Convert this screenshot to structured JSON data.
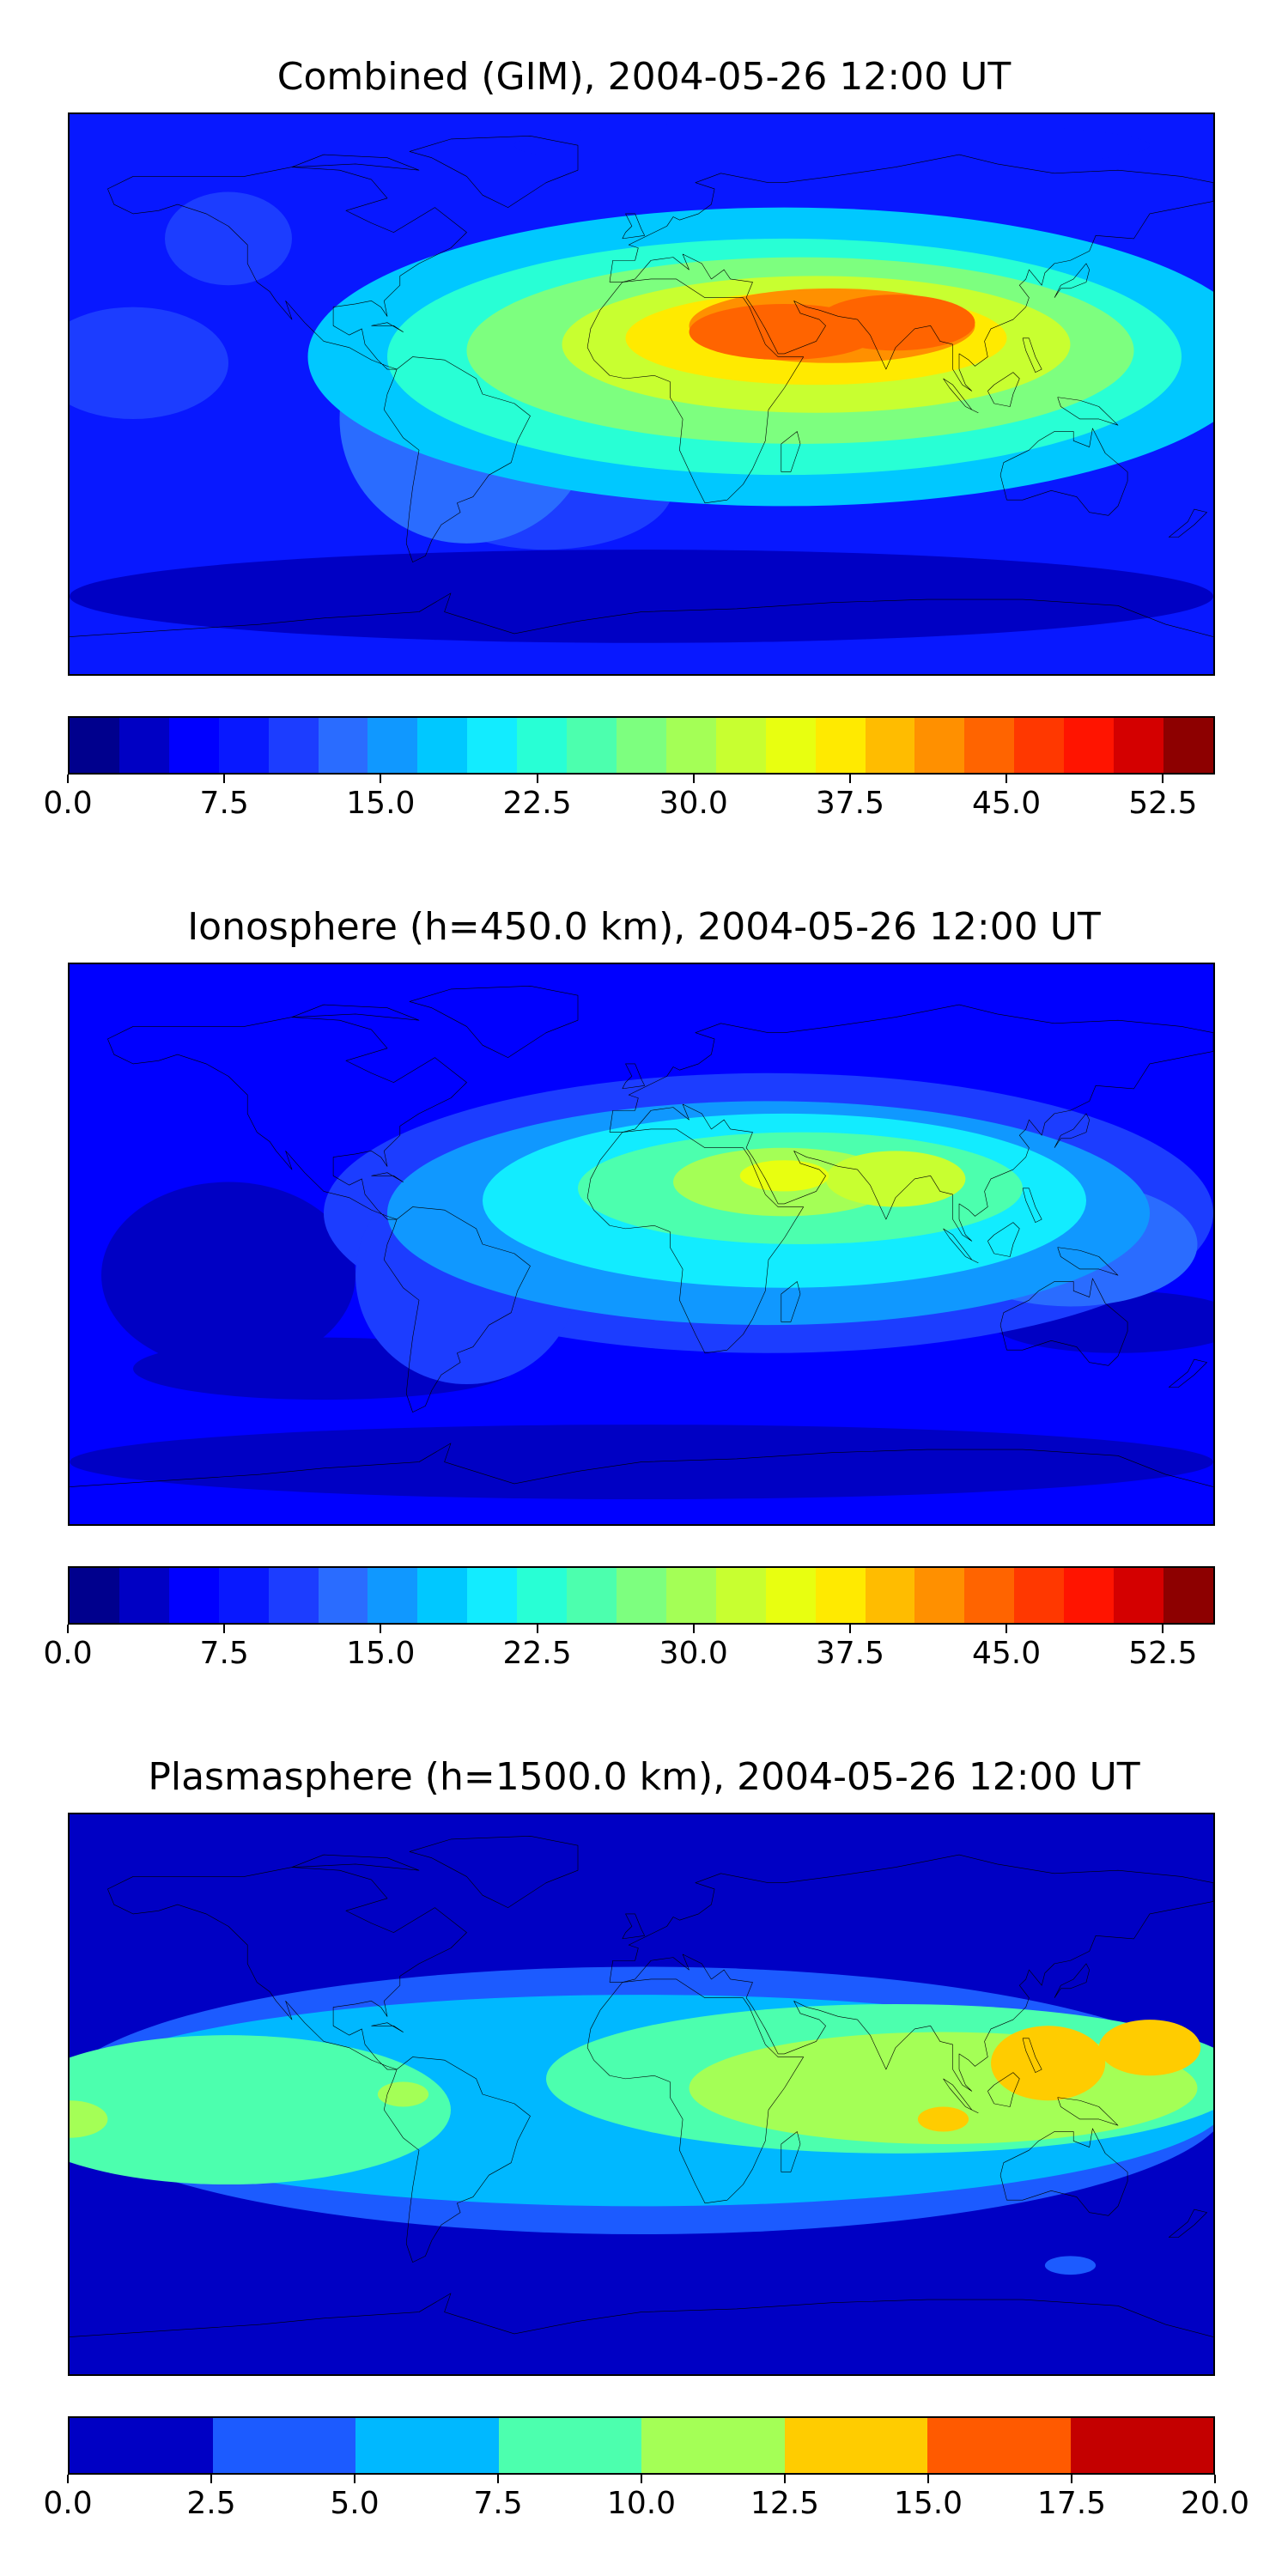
{
  "chart_data": [
    {
      "type": "heatmap",
      "title": "Combined (GIM), 2004-05-26 12:00 UT",
      "colorbar": {
        "levels": [
          0.0,
          2.5,
          5.0,
          7.5,
          10.0,
          12.5,
          15.0,
          17.5,
          20.0,
          22.5,
          25.0,
          27.5,
          30.0,
          32.5,
          35.0,
          37.5,
          40.0,
          42.5,
          45.0,
          47.5,
          50.0,
          52.5,
          55.0
        ],
        "colors": [
          "#00008d",
          "#0000c4",
          "#0000ff",
          "#0818ff",
          "#1c3dff",
          "#2a6cff",
          "#1098ff",
          "#00c8ff",
          "#12ecff",
          "#28ffd5",
          "#4cffae",
          "#7dff7f",
          "#a4ff56",
          "#c8ff30",
          "#e8ff10",
          "#ffea00",
          "#ffbc00",
          "#ff9000",
          "#ff6400",
          "#ff3800",
          "#ff1400",
          "#d40000",
          "#8d0000"
        ],
        "ticks": [
          "0.0",
          "7.5",
          "15.0",
          "22.5",
          "30.0",
          "37.5",
          "45.0",
          "52.5"
        ],
        "tick_values": [
          0.0,
          7.5,
          15.0,
          22.5,
          30.0,
          37.5,
          45.0,
          52.5
        ],
        "range": [
          0.0,
          55.0
        ]
      },
      "background_level": 7.5,
      "blobs": [
        {
          "lon": 45,
          "lat": 12,
          "rx": 150,
          "ry": 48,
          "level": 17.5
        },
        {
          "lon": 45,
          "lat": 12,
          "rx": 125,
          "ry": 38,
          "level": 22.5
        },
        {
          "lon": 50,
          "lat": 14,
          "rx": 105,
          "ry": 30,
          "level": 27.5
        },
        {
          "lon": 55,
          "lat": 16,
          "rx": 80,
          "ry": 22,
          "level": 32.5
        },
        {
          "lon": 55,
          "lat": 18,
          "rx": 60,
          "ry": 15,
          "level": 37.5
        },
        {
          "lon": 45,
          "lat": 20,
          "rx": 30,
          "ry": 9,
          "level": 45.0
        },
        {
          "lon": 80,
          "lat": 23,
          "rx": 25,
          "ry": 9,
          "level": 45.0
        },
        {
          "lon": 60,
          "lat": 22,
          "rx": 45,
          "ry": 12,
          "level": 42.5
        },
        {
          "lon": 150,
          "lat": 10,
          "rx": 45,
          "ry": 25,
          "level": 15.0
        },
        {
          "lon": -55,
          "lat": -8,
          "rx": 40,
          "ry": 40,
          "level": 12.5
        },
        {
          "lon": -30,
          "lat": -30,
          "rx": 40,
          "ry": 20,
          "level": 10.0
        },
        {
          "lon": -160,
          "lat": 10,
          "rx": 30,
          "ry": 18,
          "level": 10.0
        },
        {
          "lon": -130,
          "lat": 50,
          "rx": 20,
          "ry": 15,
          "level": 10.0
        },
        {
          "lon": 0,
          "lat": -65,
          "rx": 180,
          "ry": 15,
          "level": 2.5
        },
        {
          "lon": 60,
          "lat": 80,
          "rx": 100,
          "ry": 8,
          "level": 7.5
        }
      ]
    },
    {
      "type": "heatmap",
      "title": "Ionosphere  (h=450.0 km), 2004-05-26 12:00 UT",
      "colorbar": {
        "levels": [
          0.0,
          2.5,
          5.0,
          7.5,
          10.0,
          12.5,
          15.0,
          17.5,
          20.0,
          22.5,
          25.0,
          27.5,
          30.0,
          32.5,
          35.0,
          37.5,
          40.0,
          42.5,
          45.0,
          47.5,
          50.0,
          52.5,
          55.0
        ],
        "colors": [
          "#00008d",
          "#0000c4",
          "#0000ff",
          "#0818ff",
          "#1c3dff",
          "#2a6cff",
          "#1098ff",
          "#00c8ff",
          "#12ecff",
          "#28ffd5",
          "#4cffae",
          "#7dff7f",
          "#a4ff56",
          "#c8ff30",
          "#e8ff10",
          "#ffea00",
          "#ffbc00",
          "#ff9000",
          "#ff6400",
          "#ff3800",
          "#ff1400",
          "#d40000",
          "#8d0000"
        ],
        "ticks": [
          "0.0",
          "7.5",
          "15.0",
          "22.5",
          "30.0",
          "37.5",
          "45.0",
          "52.5"
        ],
        "tick_values": [
          0.0,
          7.5,
          15.0,
          22.5,
          30.0,
          37.5,
          45.0,
          52.5
        ],
        "range": [
          0.0,
          55.0
        ]
      },
      "background_level": 5.0,
      "blobs": [
        {
          "lon": 40,
          "lat": 10,
          "rx": 140,
          "ry": 45,
          "level": 10.0
        },
        {
          "lon": 40,
          "lat": 10,
          "rx": 120,
          "ry": 36,
          "level": 15.0
        },
        {
          "lon": 45,
          "lat": 14,
          "rx": 95,
          "ry": 28,
          "level": 20.0
        },
        {
          "lon": 50,
          "lat": 18,
          "rx": 70,
          "ry": 18,
          "level": 25.0
        },
        {
          "lon": 45,
          "lat": 20,
          "rx": 35,
          "ry": 11,
          "level": 30.0
        },
        {
          "lon": 80,
          "lat": 21,
          "rx": 22,
          "ry": 9,
          "level": 32.5
        },
        {
          "lon": 45,
          "lat": 22,
          "rx": 14,
          "ry": 5,
          "level": 35.0
        },
        {
          "lon": 135,
          "lat": 0,
          "rx": 40,
          "ry": 20,
          "level": 12.5
        },
        {
          "lon": -55,
          "lat": -10,
          "rx": 35,
          "ry": 35,
          "level": 10.0
        },
        {
          "lon": -130,
          "lat": -10,
          "rx": 40,
          "ry": 30,
          "level": 2.5
        },
        {
          "lon": 150,
          "lat": -25,
          "rx": 40,
          "ry": 10,
          "level": 2.5
        },
        {
          "lon": 0,
          "lat": -70,
          "rx": 180,
          "ry": 12,
          "level": 2.5
        },
        {
          "lon": -100,
          "lat": -40,
          "rx": 60,
          "ry": 10,
          "level": 2.5
        }
      ]
    },
    {
      "type": "heatmap",
      "title": "Plasmasphere (h=1500.0 km), 2004-05-26 12:00 UT",
      "colorbar": {
        "levels": [
          0.0,
          2.5,
          5.0,
          7.5,
          10.0,
          12.5,
          15.0,
          17.5,
          20.0
        ],
        "colors": [
          "#0000c4",
          "#1c5bff",
          "#00b8ff",
          "#4cffae",
          "#a4ff56",
          "#ffcc00",
          "#ff5a00",
          "#c40000"
        ],
        "ticks": [
          "0.0",
          "2.5",
          "5.0",
          "7.5",
          "10.0",
          "12.5",
          "15.0",
          "17.5",
          "20.0"
        ],
        "tick_values": [
          0.0,
          2.5,
          5.0,
          7.5,
          10.0,
          12.5,
          15.0,
          17.5,
          20.0
        ],
        "range": [
          0.0,
          20.0
        ]
      },
      "background_level": 0.0,
      "blobs": [
        {
          "lon": 0,
          "lat": -2,
          "rx": 185,
          "ry": 43,
          "level": 2.5
        },
        {
          "lon": 0,
          "lat": -2,
          "rx": 185,
          "ry": 34,
          "level": 5.0
        },
        {
          "lon": -130,
          "lat": -5,
          "rx": 70,
          "ry": 24,
          "level": 7.5
        },
        {
          "lon": 80,
          "lat": 5,
          "rx": 110,
          "ry": 24,
          "level": 7.5
        },
        {
          "lon": 95,
          "lat": 2,
          "rx": 80,
          "ry": 18,
          "level": 10.0
        },
        {
          "lon": 128,
          "lat": 10,
          "rx": 18,
          "ry": 12,
          "level": 12.5
        },
        {
          "lon": 160,
          "lat": 15,
          "rx": 16,
          "ry": 9,
          "level": 12.5
        },
        {
          "lon": 95,
          "lat": -8,
          "rx": 8,
          "ry": 4,
          "level": 12.5
        },
        {
          "lon": -180,
          "lat": -8,
          "rx": 12,
          "ry": 6,
          "level": 10.0
        },
        {
          "lon": -75,
          "lat": 0,
          "rx": 8,
          "ry": 4,
          "level": 10.0
        },
        {
          "lon": 135,
          "lat": -55,
          "rx": 8,
          "ry": 3,
          "level": 2.5
        }
      ]
    }
  ]
}
